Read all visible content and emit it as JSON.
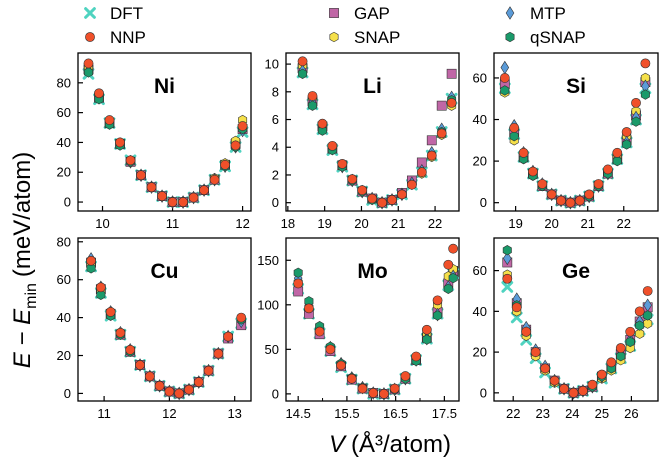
{
  "legend": [
    {
      "key": "DFT",
      "label": "DFT",
      "shape": "x",
      "color": "#4fd3c0"
    },
    {
      "key": "NNP",
      "label": "NNP",
      "shape": "circle",
      "color": "#f0502a"
    },
    {
      "key": "GAP",
      "label": "GAP",
      "shape": "square",
      "color": "#c066a6"
    },
    {
      "key": "SNAP",
      "label": "SNAP",
      "shape": "hexagon",
      "color": "#f5e04a"
    },
    {
      "key": "MTP",
      "label": "MTP",
      "shape": "diamond",
      "color": "#5b9bd8"
    },
    {
      "key": "qSNAP",
      "label": "qSNAP",
      "shape": "hexagon",
      "color": "#1a9a6a"
    }
  ],
  "axis_labels": {
    "x_prefix": "V",
    "x_unit": "(Å³/atom)",
    "y_prefix": "E − E",
    "y_subscript": "min",
    "y_unit": "(meV/atom)"
  },
  "chart_data": [
    {
      "type": "scatter",
      "title": "Ni",
      "xlim": [
        9.65,
        12.12
      ],
      "ylim": [
        -6,
        100
      ],
      "xticks": [
        10,
        11,
        12
      ],
      "xtick_labels": [
        "10",
        "11",
        "12"
      ],
      "yticks": [
        0,
        20,
        40,
        60,
        80
      ],
      "ytick_labels": [
        "0",
        "20",
        "40",
        "60",
        "80"
      ],
      "x": [
        9.8,
        9.95,
        10.1,
        10.25,
        10.4,
        10.55,
        10.7,
        10.85,
        11.0,
        11.15,
        11.3,
        11.45,
        11.6,
        11.75,
        11.9,
        12.0
      ],
      "series": [
        {
          "name": "DFT",
          "values": [
            86,
            69,
            53,
            39,
            28,
            18,
            10,
            4,
            0,
            0,
            3,
            8,
            15,
            24,
            37,
            47
          ]
        },
        {
          "name": "NNP",
          "values": [
            93,
            73,
            55,
            40,
            28,
            18,
            10,
            4,
            0,
            0,
            3,
            8,
            15,
            25,
            38,
            51
          ]
        },
        {
          "name": "GAP",
          "values": [
            89,
            70,
            53,
            39,
            27,
            18,
            10,
            4,
            0,
            0,
            3,
            8,
            15,
            25,
            39,
            49
          ]
        },
        {
          "name": "SNAP",
          "values": [
            90,
            71,
            54,
            39,
            28,
            18,
            10,
            4,
            0,
            0,
            3,
            8,
            16,
            26,
            41,
            55
          ]
        },
        {
          "name": "MTP",
          "values": [
            88,
            70,
            53,
            39,
            27,
            18,
            10,
            4,
            0,
            0,
            3,
            8,
            15,
            24,
            37,
            48
          ]
        },
        {
          "name": "qSNAP",
          "values": [
            87,
            69,
            52,
            38,
            27,
            18,
            10,
            4,
            0,
            0,
            3,
            8,
            15,
            24,
            37,
            49
          ]
        }
      ]
    },
    {
      "type": "scatter",
      "title": "Li",
      "xlim": [
        17.95,
        22.65
      ],
      "ylim": [
        -0.6,
        10.8
      ],
      "xticks": [
        18,
        19,
        20,
        21,
        22
      ],
      "xtick_labels": [
        "18",
        "19",
        "20",
        "21",
        "22"
      ],
      "yticks": [
        0,
        2,
        4,
        6,
        8,
        10
      ],
      "ytick_labels": [
        "0",
        "2",
        "4",
        "6",
        "8",
        "10"
      ],
      "x": [
        18.4,
        18.67,
        18.94,
        19.21,
        19.48,
        19.75,
        20.02,
        20.29,
        20.56,
        20.83,
        21.1,
        21.37,
        21.64,
        21.91,
        22.18,
        22.45
      ],
      "series": [
        {
          "name": "DFT",
          "values": [
            9.4,
            7.1,
            5.3,
            3.8,
            2.6,
            1.6,
            0.8,
            0.2,
            0,
            0.2,
            0.6,
            1.3,
            2.2,
            3.4,
            5.1,
            7.5
          ]
        },
        {
          "name": "NNP",
          "values": [
            10.2,
            7.7,
            5.7,
            4.1,
            2.8,
            1.7,
            0.9,
            0.3,
            0,
            0.2,
            0.6,
            1.3,
            2.2,
            3.4,
            5.0,
            7.2
          ]
        },
        {
          "name": "GAP",
          "values": [
            9.7,
            7.3,
            5.5,
            3.9,
            2.7,
            1.6,
            0.8,
            0.3,
            0,
            0.2,
            0.7,
            1.6,
            2.9,
            4.5,
            7.0,
            9.3
          ]
        },
        {
          "name": "SNAP",
          "values": [
            9.9,
            7.6,
            5.6,
            4.0,
            2.7,
            1.7,
            0.9,
            0.3,
            0,
            0.2,
            0.6,
            1.3,
            2.1,
            3.3,
            4.9,
            7.0
          ]
        },
        {
          "name": "MTP",
          "values": [
            9.5,
            7.2,
            5.4,
            3.9,
            2.6,
            1.6,
            0.8,
            0.3,
            0,
            0.2,
            0.6,
            1.4,
            2.3,
            3.6,
            5.3,
            7.6
          ]
        },
        {
          "name": "qSNAP",
          "values": [
            9.3,
            7.0,
            5.2,
            3.8,
            2.6,
            1.6,
            0.8,
            0.2,
            0,
            0.2,
            0.6,
            1.3,
            2.2,
            3.4,
            5.1,
            7.4
          ]
        }
      ]
    },
    {
      "type": "scatter",
      "title": "Si",
      "xlim": [
        18.4,
        22.95
      ],
      "ylim": [
        -4,
        72
      ],
      "xticks": [
        19,
        20,
        21,
        22
      ],
      "xtick_labels": [
        "19",
        "20",
        "21",
        "22"
      ],
      "yticks": [
        0,
        20,
        40,
        60
      ],
      "ytick_labels": [
        "0",
        "20",
        "40",
        "60"
      ],
      "x": [
        18.7,
        18.96,
        19.22,
        19.48,
        19.74,
        20.0,
        20.26,
        20.52,
        20.78,
        21.04,
        21.3,
        21.56,
        21.82,
        22.08,
        22.34,
        22.6
      ],
      "series": [
        {
          "name": "DFT",
          "values": [
            55,
            33,
            22,
            14,
            8,
            4,
            1,
            0,
            1,
            3,
            8,
            14,
            21,
            29,
            40,
            55
          ]
        },
        {
          "name": "NNP",
          "values": [
            60,
            36,
            24,
            15,
            9,
            4,
            1,
            0,
            1,
            4,
            9,
            16,
            24,
            34,
            48,
            67
          ]
        },
        {
          "name": "GAP",
          "values": [
            57,
            34,
            22,
            14,
            8,
            4,
            1,
            0,
            1,
            3,
            8,
            14,
            21,
            30,
            42,
            58
          ]
        },
        {
          "name": "SNAP",
          "values": [
            53,
            30,
            21,
            13,
            8,
            4,
            1,
            0,
            1,
            3,
            8,
            15,
            22,
            32,
            44,
            60
          ]
        },
        {
          "name": "MTP",
          "values": [
            65,
            37,
            24,
            15,
            9,
            4,
            1,
            0,
            1,
            3,
            8,
            14,
            21,
            29,
            41,
            56
          ]
        },
        {
          "name": "qSNAP",
          "values": [
            54,
            32,
            21,
            13,
            8,
            4,
            1,
            0,
            1,
            3,
            8,
            14,
            20,
            28,
            39,
            52
          ]
        }
      ]
    },
    {
      "type": "scatter",
      "title": "Cu",
      "xlim": [
        10.6,
        13.25
      ],
      "ylim": [
        -4,
        82
      ],
      "xticks": [
        11,
        12,
        13
      ],
      "xtick_labels": [
        "11",
        "12",
        "13"
      ],
      "yticks": [
        0,
        20,
        40,
        60,
        80
      ],
      "ytick_labels": [
        "0",
        "20",
        "40",
        "60",
        "80"
      ],
      "x": [
        10.8,
        10.95,
        11.1,
        11.25,
        11.4,
        11.55,
        11.7,
        11.85,
        12.0,
        12.15,
        12.3,
        12.45,
        12.6,
        12.75,
        12.9,
        13.1
      ],
      "series": [
        {
          "name": "DFT",
          "values": [
            67,
            53,
            41,
            31,
            22,
            15,
            9,
            4,
            1,
            0,
            2,
            6,
            12,
            21,
            30,
            37
          ]
        },
        {
          "name": "NNP",
          "values": [
            70,
            56,
            43,
            32,
            23,
            15,
            9,
            4,
            1,
            0,
            2,
            6,
            12,
            21,
            30,
            40
          ]
        },
        {
          "name": "GAP",
          "values": [
            69,
            55,
            42,
            31,
            22,
            15,
            9,
            4,
            1,
            0,
            2,
            6,
            12,
            21,
            29,
            36
          ]
        },
        {
          "name": "SNAP",
          "values": [
            68,
            54,
            41,
            31,
            22,
            15,
            9,
            4,
            1,
            0,
            2,
            6,
            12,
            21,
            30,
            39
          ]
        },
        {
          "name": "MTP",
          "values": [
            71,
            56,
            43,
            32,
            23,
            15,
            9,
            4,
            1,
            0,
            2,
            6,
            12,
            21,
            30,
            38
          ]
        },
        {
          "name": "qSNAP",
          "values": [
            66,
            52,
            41,
            31,
            22,
            15,
            9,
            4,
            1,
            0,
            2,
            6,
            12,
            21,
            30,
            39
          ]
        }
      ]
    },
    {
      "type": "scatter",
      "title": "Mo",
      "xlim": [
        14.25,
        17.8
      ],
      "ylim": [
        -8,
        175
      ],
      "xticks": [
        14.5,
        15.5,
        16.5,
        17.5
      ],
      "xtick_labels": [
        "14.5",
        "15.5",
        "16.5",
        "17.5"
      ],
      "minor_xticks": [
        15.0,
        16.0,
        17.0
      ],
      "yticks": [
        0,
        50,
        100,
        150
      ],
      "ytick_labels": [
        "0",
        "50",
        "100",
        "150"
      ],
      "x": [
        14.5,
        14.72,
        14.94,
        15.16,
        15.38,
        15.6,
        15.82,
        16.04,
        16.26,
        16.48,
        16.7,
        16.92,
        17.14,
        17.36,
        17.58,
        17.68
      ],
      "series": [
        {
          "name": "DFT",
          "values": [
            118,
            90,
            68,
            48,
            30,
            16,
            6,
            0,
            0,
            5,
            17,
            38,
            62,
            90,
            122,
            135
          ]
        },
        {
          "name": "NNP",
          "values": [
            124,
            96,
            70,
            50,
            32,
            17,
            6,
            1,
            0,
            6,
            20,
            42,
            72,
            105,
            145,
            163
          ]
        },
        {
          "name": "GAP",
          "values": [
            115,
            90,
            67,
            48,
            31,
            16,
            6,
            1,
            0,
            5,
            17,
            38,
            63,
            92,
            124,
            138
          ]
        },
        {
          "name": "SNAP",
          "values": [
            125,
            97,
            72,
            51,
            33,
            18,
            7,
            1,
            0,
            5,
            18,
            40,
            68,
            100,
            132,
            140
          ]
        },
        {
          "name": "MTP",
          "values": [
            130,
            102,
            74,
            52,
            34,
            18,
            7,
            1,
            0,
            5,
            17,
            38,
            62,
            89,
            120,
            132
          ]
        },
        {
          "name": "qSNAP",
          "values": [
            136,
            104,
            76,
            53,
            34,
            18,
            7,
            1,
            0,
            5,
            17,
            37,
            61,
            88,
            118,
            130
          ]
        }
      ]
    },
    {
      "type": "scatter",
      "title": "Ge",
      "xlim": [
        21.35,
        26.9
      ],
      "ylim": [
        -4,
        76
      ],
      "xticks": [
        22,
        23,
        24,
        25,
        26
      ],
      "xtick_labels": [
        "22",
        "23",
        "24",
        "25",
        "26"
      ],
      "yticks": [
        0,
        20,
        40,
        60
      ],
      "ytick_labels": [
        "0",
        "20",
        "40",
        "60"
      ],
      "x": [
        21.8,
        22.12,
        22.44,
        22.76,
        23.08,
        23.4,
        23.72,
        24.04,
        24.36,
        24.68,
        25.0,
        25.32,
        25.64,
        25.96,
        26.28,
        26.55
      ],
      "series": [
        {
          "name": "DFT",
          "values": [
            52,
            37,
            26,
            17,
            10,
            5,
            2,
            0,
            1,
            3,
            7,
            12,
            17,
            23,
            31,
            36
          ]
        },
        {
          "name": "NNP",
          "values": [
            56,
            42,
            30,
            20,
            12,
            6,
            2,
            0,
            1,
            4,
            9,
            15,
            22,
            30,
            40,
            50
          ]
        },
        {
          "name": "GAP",
          "values": [
            64,
            44,
            31,
            20,
            12,
            6,
            2,
            0,
            1,
            3,
            8,
            13,
            19,
            26,
            35,
            42
          ]
        },
        {
          "name": "SNAP",
          "values": [
            58,
            40,
            28,
            18,
            11,
            5,
            2,
            0,
            1,
            3,
            7,
            11,
            16,
            22,
            29,
            34
          ]
        },
        {
          "name": "MTP",
          "values": [
            66,
            46,
            32,
            21,
            13,
            6,
            2,
            0,
            1,
            3,
            8,
            13,
            19,
            26,
            35,
            43
          ]
        },
        {
          "name": "qSNAP",
          "values": [
            70,
            43,
            30,
            20,
            12,
            6,
            2,
            0,
            1,
            3,
            8,
            12,
            18,
            25,
            33,
            38
          ]
        }
      ]
    }
  ]
}
